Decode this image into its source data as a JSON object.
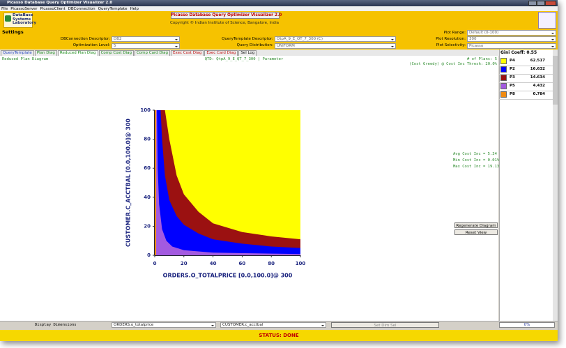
{
  "window": {
    "title": "Picasso Database Query Optimizer Visualizer 2.0"
  },
  "menu": [
    "File",
    "PicassoServer",
    "PicassoClient",
    "DBConnection",
    "QueryTemplate",
    "Help"
  ],
  "header": {
    "title": "Picasso Database Query Optimizer Visualizer 2.0",
    "copyright": "Copyright © Indian Institute of Science, Bangalore, India",
    "logo": [
      "DataBase",
      "Systems",
      "Laboratory"
    ]
  },
  "settings": {
    "title": "Settings",
    "columns": [
      [
        {
          "label": "DBConnection Descriptor:",
          "value": "DB2"
        },
        {
          "label": "Optimization Level:",
          "value": "5"
        }
      ],
      [
        {
          "label": "QueryTemplate Descriptor:",
          "value": "QtpA_9_E_QT_7_300    (C)"
        },
        {
          "label": "Query Distribution:",
          "value": "UNIFORM"
        }
      ],
      [
        {
          "label": "Plot Range:",
          "value": "Default (0-100)"
        },
        {
          "label": "Plot Resolution:",
          "value": "300"
        },
        {
          "label": "Plot Selectivity:",
          "value": "Picasso"
        }
      ]
    ]
  },
  "tabs": [
    {
      "label": "QueryTemplate",
      "color": "#1f3fbf"
    },
    {
      "label": "Plan Diag",
      "color": "#1a8a1a"
    },
    {
      "label": "Reduced Plan Diag",
      "color": "#1a8a1a",
      "selected": true
    },
    {
      "label": "Comp Cost Diag",
      "color": "#1a8a1a"
    },
    {
      "label": "Comp Card Diag",
      "color": "#1a8a1a"
    },
    {
      "label": "Exec Cost Diag",
      "color": "#c01010"
    },
    {
      "label": "Exec Card Diag",
      "color": "#c01010"
    },
    {
      "label": "Sel Log",
      "color": "#111111"
    }
  ],
  "diagram": {
    "name": "Reduced Plan Diagram",
    "qtd": "QTD: QtpA_9_E_QT_7_300 | Parameter",
    "plans": "# of Plans: 5",
    "threshold": "(Cost Greedy) @ Cost Inc Thresh: 20.0%",
    "stats": [
      "Avg Cost Inc = 5.34",
      "Min Cost Inc = 0.01%",
      "Max Cost Inc = 19.13%"
    ],
    "x_label": "ORDERS.O_TOTALPRICE [0.0,100.0]@ 300",
    "y_label": "CUSTOMER.C_ACCTBAL [0.0,100.0]@ 300",
    "xlim": [
      0,
      100
    ],
    "ylim": [
      0,
      100
    ],
    "xticks": [
      0,
      20,
      40,
      60,
      80,
      100
    ],
    "yticks": [
      0,
      20,
      40,
      60,
      80,
      100
    ]
  },
  "buttons": [
    "Regenerate Diagram",
    "Reset View"
  ],
  "legend": {
    "title": "Gini Coeff: 0.55",
    "plans": [
      {
        "name": "P4",
        "value": 62.517,
        "color": "#ffff00"
      },
      {
        "name": "P2",
        "value": 16.632,
        "color": "#0000ff"
      },
      {
        "name": "P3",
        "value": 14.634,
        "color": "#9b1111"
      },
      {
        "name": "P5",
        "value": 4.432,
        "color": "#a35ae0"
      },
      {
        "name": "P8",
        "value": 0.784,
        "color": "#f08a10"
      }
    ]
  },
  "footer": {
    "label": "Display Dimensions",
    "dims": [
      "ORDERS.o_totalprice",
      "CUSTOMER.c_acctbal"
    ],
    "button": "Set Dim Sel",
    "progress": "0%"
  },
  "status": "STATUS: DONE"
}
